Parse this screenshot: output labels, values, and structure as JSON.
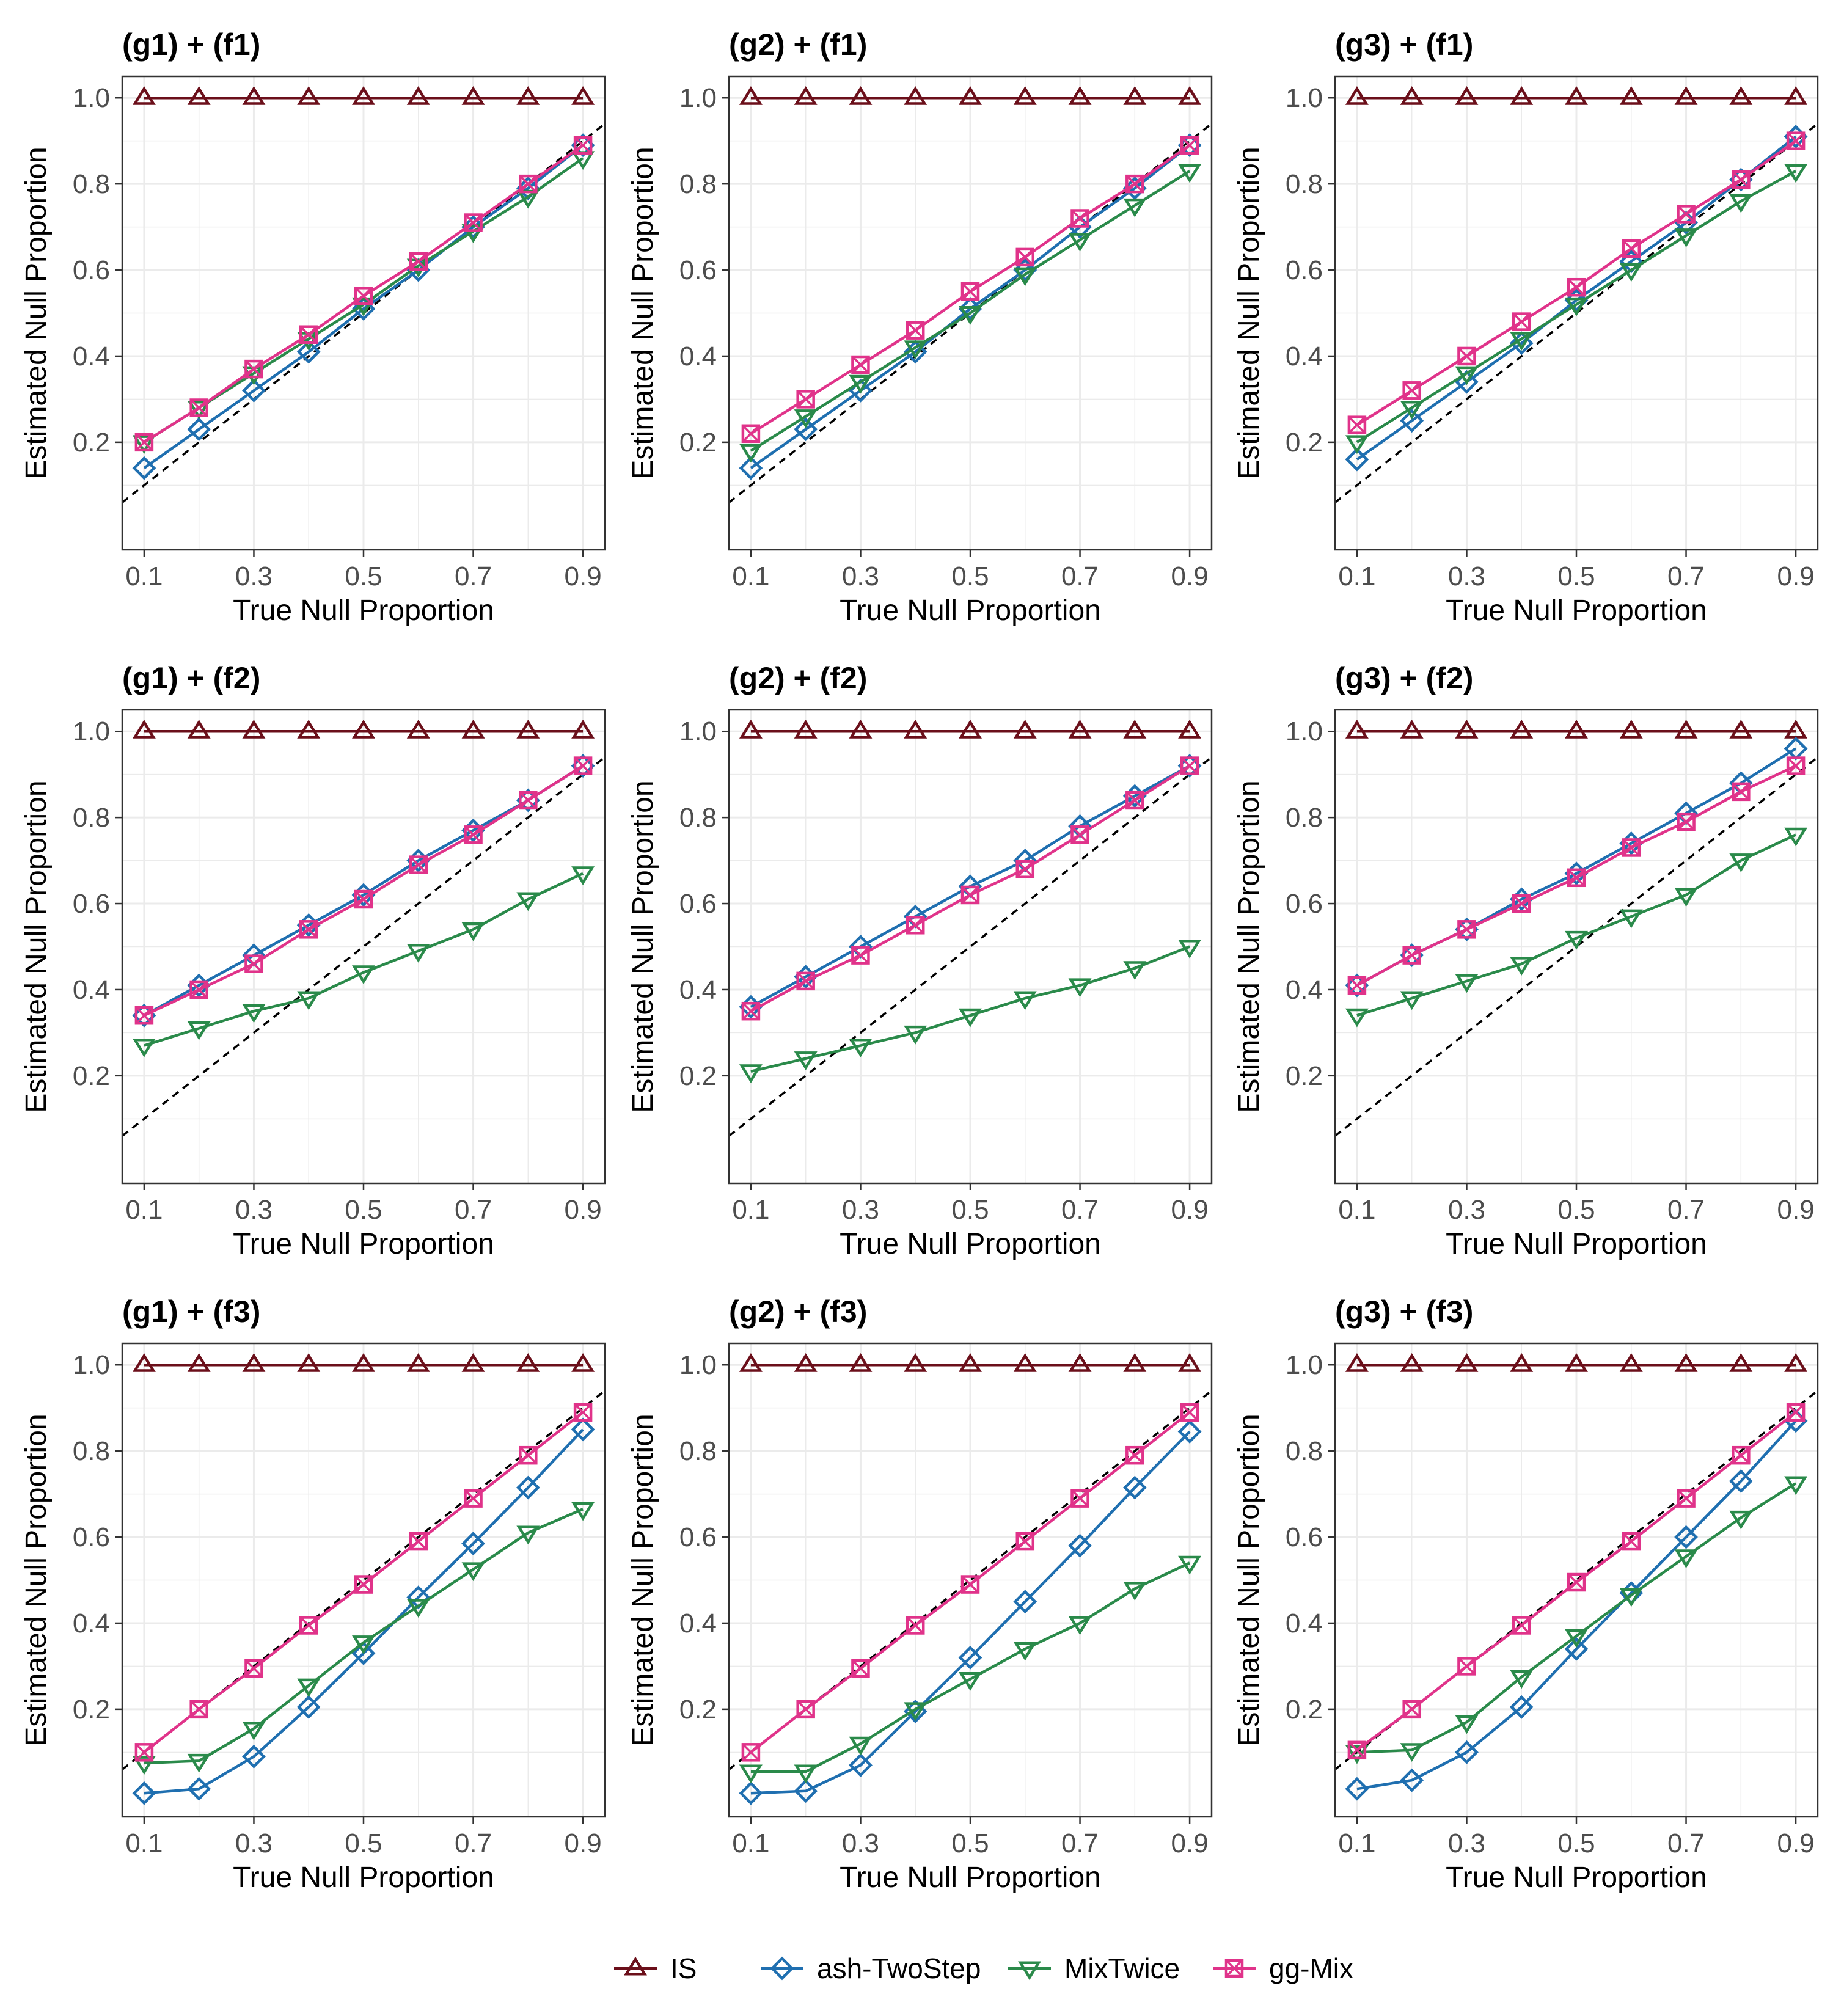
{
  "colors": {
    "IS": "#6b0f1a",
    "ash-TwoStep": "#1f6fb0",
    "MixTwice": "#2a8a4a",
    "gg-Mix": "#e0338a",
    "reference_line": "#000000",
    "grid": "#ebebeb",
    "panel_border": "#333333"
  },
  "legend": {
    "position": "bottom",
    "items": [
      {
        "label": "IS",
        "color": "#6b0f1a",
        "shape": "triangle-up"
      },
      {
        "label": "ash-TwoStep",
        "color": "#1f6fb0",
        "shape": "diamond"
      },
      {
        "label": "MixTwice",
        "color": "#2a8a4a",
        "shape": "triangle-down"
      },
      {
        "label": "gg-Mix",
        "color": "#e0338a",
        "shape": "square-cross"
      }
    ]
  },
  "chart_data": [
    {
      "type": "line",
      "title": "(g1) + (f1)",
      "xlabel": "True Null Proportion",
      "ylabel": "Estimated Null Proportion",
      "x": [
        0.1,
        0.2,
        0.3,
        0.4,
        0.5,
        0.6,
        0.7,
        0.8,
        0.9
      ],
      "xticks": [
        "0.1",
        "0.3",
        "0.5",
        "0.7",
        "0.9"
      ],
      "yticks": [
        "0.2",
        "0.4",
        "0.6",
        "0.8",
        "1.0"
      ],
      "xlim": [
        0.06,
        0.94
      ],
      "ylim": [
        -0.05,
        1.05
      ],
      "reference": "y = x",
      "series": [
        {
          "name": "IS",
          "values": [
            1,
            1,
            1,
            1,
            1,
            1,
            1,
            1,
            1
          ]
        },
        {
          "name": "ash-TwoStep",
          "values": [
            0.14,
            0.23,
            0.32,
            0.41,
            0.51,
            0.6,
            0.7,
            0.79,
            0.89
          ]
        },
        {
          "name": "MixTwice",
          "values": [
            0.2,
            0.28,
            0.36,
            0.44,
            0.52,
            0.61,
            0.69,
            0.77,
            0.86
          ]
        },
        {
          "name": "gg-Mix",
          "values": [
            0.2,
            0.28,
            0.37,
            0.45,
            0.54,
            0.62,
            0.71,
            0.8,
            0.89
          ]
        }
      ]
    },
    {
      "type": "line",
      "title": "(g2) + (f1)",
      "xlabel": "True Null Proportion",
      "ylabel": "Estimated Null Proportion",
      "x": [
        0.1,
        0.2,
        0.3,
        0.4,
        0.5,
        0.6,
        0.7,
        0.8,
        0.9
      ],
      "xticks": [
        "0.1",
        "0.3",
        "0.5",
        "0.7",
        "0.9"
      ],
      "yticks": [
        "0.2",
        "0.4",
        "0.6",
        "0.8",
        "1.0"
      ],
      "xlim": [
        0.06,
        0.94
      ],
      "ylim": [
        -0.05,
        1.05
      ],
      "reference": "y = x",
      "series": [
        {
          "name": "IS",
          "values": [
            1,
            1,
            1,
            1,
            1,
            1,
            1,
            1,
            1
          ]
        },
        {
          "name": "ash-TwoStep",
          "values": [
            0.14,
            0.23,
            0.32,
            0.41,
            0.51,
            0.6,
            0.7,
            0.79,
            0.89
          ]
        },
        {
          "name": "MixTwice",
          "values": [
            0.18,
            0.26,
            0.34,
            0.42,
            0.5,
            0.59,
            0.67,
            0.75,
            0.83
          ]
        },
        {
          "name": "gg-Mix",
          "values": [
            0.22,
            0.3,
            0.38,
            0.46,
            0.55,
            0.63,
            0.72,
            0.8,
            0.89
          ]
        }
      ]
    },
    {
      "type": "line",
      "title": "(g3) + (f1)",
      "xlabel": "True Null Proportion",
      "ylabel": "Estimated Null Proportion",
      "x": [
        0.1,
        0.2,
        0.3,
        0.4,
        0.5,
        0.6,
        0.7,
        0.8,
        0.9
      ],
      "xticks": [
        "0.1",
        "0.3",
        "0.5",
        "0.7",
        "0.9"
      ],
      "yticks": [
        "0.2",
        "0.4",
        "0.6",
        "0.8",
        "1.0"
      ],
      "xlim": [
        0.06,
        0.94
      ],
      "ylim": [
        -0.05,
        1.05
      ],
      "reference": "y = x",
      "series": [
        {
          "name": "IS",
          "values": [
            1,
            1,
            1,
            1,
            1,
            1,
            1,
            1,
            1
          ]
        },
        {
          "name": "ash-TwoStep",
          "values": [
            0.16,
            0.25,
            0.34,
            0.43,
            0.53,
            0.62,
            0.71,
            0.81,
            0.91
          ]
        },
        {
          "name": "MixTwice",
          "values": [
            0.2,
            0.28,
            0.36,
            0.44,
            0.52,
            0.6,
            0.68,
            0.76,
            0.83
          ]
        },
        {
          "name": "gg-Mix",
          "values": [
            0.24,
            0.32,
            0.4,
            0.48,
            0.56,
            0.65,
            0.73,
            0.81,
            0.9
          ]
        }
      ]
    },
    {
      "type": "line",
      "title": "(g1) + (f2)",
      "xlabel": "True Null Proportion",
      "ylabel": "Estimated Null Proportion",
      "x": [
        0.1,
        0.2,
        0.3,
        0.4,
        0.5,
        0.6,
        0.7,
        0.8,
        0.9
      ],
      "xticks": [
        "0.1",
        "0.3",
        "0.5",
        "0.7",
        "0.9"
      ],
      "yticks": [
        "0.2",
        "0.4",
        "0.6",
        "0.8",
        "1.0"
      ],
      "xlim": [
        0.06,
        0.94
      ],
      "ylim": [
        -0.05,
        1.05
      ],
      "reference": "y = x",
      "series": [
        {
          "name": "IS",
          "values": [
            1,
            1,
            1,
            1,
            1,
            1,
            1,
            1,
            1
          ]
        },
        {
          "name": "ash-TwoStep",
          "values": [
            0.34,
            0.41,
            0.48,
            0.55,
            0.62,
            0.7,
            0.77,
            0.84,
            0.92
          ]
        },
        {
          "name": "MixTwice",
          "values": [
            0.27,
            0.31,
            0.35,
            0.38,
            0.44,
            0.49,
            0.54,
            0.61,
            0.67
          ]
        },
        {
          "name": "gg-Mix",
          "values": [
            0.34,
            0.4,
            0.46,
            0.54,
            0.61,
            0.69,
            0.76,
            0.84,
            0.92
          ]
        }
      ]
    },
    {
      "type": "line",
      "title": "(g2) + (f2)",
      "xlabel": "True Null Proportion",
      "ylabel": "Estimated Null Proportion",
      "x": [
        0.1,
        0.2,
        0.3,
        0.4,
        0.5,
        0.6,
        0.7,
        0.8,
        0.9
      ],
      "xticks": [
        "0.1",
        "0.3",
        "0.5",
        "0.7",
        "0.9"
      ],
      "yticks": [
        "0.2",
        "0.4",
        "0.6",
        "0.8",
        "1.0"
      ],
      "xlim": [
        0.06,
        0.94
      ],
      "ylim": [
        -0.05,
        1.05
      ],
      "reference": "y = x",
      "series": [
        {
          "name": "IS",
          "values": [
            1,
            1,
            1,
            1,
            1,
            1,
            1,
            1,
            1
          ]
        },
        {
          "name": "ash-TwoStep",
          "values": [
            0.36,
            0.43,
            0.5,
            0.57,
            0.64,
            0.7,
            0.78,
            0.85,
            0.92
          ]
        },
        {
          "name": "MixTwice",
          "values": [
            0.21,
            0.24,
            0.27,
            0.3,
            0.34,
            0.38,
            0.41,
            0.45,
            0.5
          ]
        },
        {
          "name": "gg-Mix",
          "values": [
            0.35,
            0.42,
            0.48,
            0.55,
            0.62,
            0.68,
            0.76,
            0.84,
            0.92
          ]
        }
      ]
    },
    {
      "type": "line",
      "title": "(g3) + (f2)",
      "xlabel": "True Null Proportion",
      "ylabel": "Estimated Null Proportion",
      "x": [
        0.1,
        0.2,
        0.3,
        0.4,
        0.5,
        0.6,
        0.7,
        0.8,
        0.9
      ],
      "xticks": [
        "0.1",
        "0.3",
        "0.5",
        "0.7",
        "0.9"
      ],
      "yticks": [
        "0.2",
        "0.4",
        "0.6",
        "0.8",
        "1.0"
      ],
      "xlim": [
        0.06,
        0.94
      ],
      "ylim": [
        -0.05,
        1.05
      ],
      "reference": "y = x",
      "series": [
        {
          "name": "IS",
          "values": [
            1,
            1,
            1,
            1,
            1,
            1,
            1,
            1,
            1
          ]
        },
        {
          "name": "ash-TwoStep",
          "values": [
            0.41,
            0.48,
            0.54,
            0.61,
            0.67,
            0.74,
            0.81,
            0.88,
            0.96
          ]
        },
        {
          "name": "MixTwice",
          "values": [
            0.34,
            0.38,
            0.42,
            0.46,
            0.52,
            0.57,
            0.62,
            0.7,
            0.76
          ]
        },
        {
          "name": "gg-Mix",
          "values": [
            0.41,
            0.48,
            0.54,
            0.6,
            0.66,
            0.73,
            0.79,
            0.86,
            0.92
          ]
        }
      ]
    },
    {
      "type": "line",
      "title": "(g1) + (f3)",
      "xlabel": "True Null Proportion",
      "ylabel": "Estimated Null Proportion",
      "x": [
        0.1,
        0.2,
        0.3,
        0.4,
        0.5,
        0.6,
        0.7,
        0.8,
        0.9
      ],
      "xticks": [
        "0.1",
        "0.3",
        "0.5",
        "0.7",
        "0.9"
      ],
      "yticks": [
        "0.2",
        "0.4",
        "0.6",
        "0.8",
        "1.0"
      ],
      "xlim": [
        0.06,
        0.94
      ],
      "ylim": [
        -0.05,
        1.05
      ],
      "reference": "y = x",
      "series": [
        {
          "name": "IS",
          "values": [
            1,
            1,
            1,
            1,
            1,
            1,
            1,
            1,
            1
          ]
        },
        {
          "name": "ash-TwoStep",
          "values": [
            0.005,
            0.015,
            0.09,
            0.205,
            0.33,
            0.46,
            0.585,
            0.715,
            0.85
          ]
        },
        {
          "name": "MixTwice",
          "values": [
            0.075,
            0.08,
            0.155,
            0.255,
            0.355,
            0.44,
            0.525,
            0.61,
            0.665
          ]
        },
        {
          "name": "gg-Mix",
          "values": [
            0.1,
            0.2,
            0.295,
            0.395,
            0.49,
            0.59,
            0.69,
            0.79,
            0.89
          ]
        }
      ]
    },
    {
      "type": "line",
      "title": "(g2) + (f3)",
      "xlabel": "True Null Proportion",
      "ylabel": "Estimated Null Proportion",
      "x": [
        0.1,
        0.2,
        0.3,
        0.4,
        0.5,
        0.6,
        0.7,
        0.8,
        0.9
      ],
      "xticks": [
        "0.1",
        "0.3",
        "0.5",
        "0.7",
        "0.9"
      ],
      "yticks": [
        "0.2",
        "0.4",
        "0.6",
        "0.8",
        "1.0"
      ],
      "xlim": [
        0.06,
        0.94
      ],
      "ylim": [
        -0.05,
        1.05
      ],
      "reference": "y = x",
      "series": [
        {
          "name": "IS",
          "values": [
            1,
            1,
            1,
            1,
            1,
            1,
            1,
            1,
            1
          ]
        },
        {
          "name": "ash-TwoStep",
          "values": [
            0.005,
            0.01,
            0.07,
            0.195,
            0.32,
            0.45,
            0.58,
            0.715,
            0.845
          ]
        },
        {
          "name": "MixTwice",
          "values": [
            0.055,
            0.055,
            0.12,
            0.2,
            0.27,
            0.34,
            0.4,
            0.48,
            0.54
          ]
        },
        {
          "name": "gg-Mix",
          "values": [
            0.1,
            0.2,
            0.295,
            0.395,
            0.49,
            0.59,
            0.69,
            0.79,
            0.89
          ]
        }
      ]
    },
    {
      "type": "line",
      "title": "(g3) + (f3)",
      "xlabel": "True Null Proportion",
      "ylabel": "Estimated Null Proportion",
      "x": [
        0.1,
        0.2,
        0.3,
        0.4,
        0.5,
        0.6,
        0.7,
        0.8,
        0.9
      ],
      "xticks": [
        "0.1",
        "0.3",
        "0.5",
        "0.7",
        "0.9"
      ],
      "yticks": [
        "0.2",
        "0.4",
        "0.6",
        "0.8",
        "1.0"
      ],
      "xlim": [
        0.06,
        0.94
      ],
      "ylim": [
        -0.05,
        1.05
      ],
      "reference": "y = x",
      "series": [
        {
          "name": "IS",
          "values": [
            1,
            1,
            1,
            1,
            1,
            1,
            1,
            1,
            1
          ]
        },
        {
          "name": "ash-TwoStep",
          "values": [
            0.015,
            0.035,
            0.1,
            0.205,
            0.34,
            0.47,
            0.6,
            0.73,
            0.87
          ]
        },
        {
          "name": "MixTwice",
          "values": [
            0.1,
            0.105,
            0.17,
            0.275,
            0.37,
            0.465,
            0.555,
            0.645,
            0.725
          ]
        },
        {
          "name": "gg-Mix",
          "values": [
            0.105,
            0.2,
            0.3,
            0.395,
            0.495,
            0.59,
            0.69,
            0.79,
            0.89
          ]
        }
      ]
    }
  ]
}
